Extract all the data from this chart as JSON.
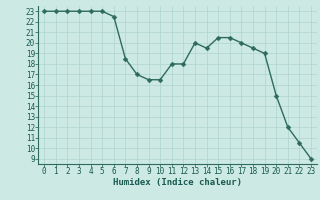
{
  "x": [
    0,
    1,
    2,
    3,
    4,
    5,
    6,
    7,
    8,
    9,
    10,
    11,
    12,
    13,
    14,
    15,
    16,
    17,
    18,
    19,
    20,
    21,
    22,
    23
  ],
  "y": [
    23,
    23,
    23,
    23,
    23,
    23,
    22.5,
    18.5,
    17,
    16.5,
    16.5,
    18,
    18,
    20,
    19.5,
    20.5,
    20.5,
    20,
    19.5,
    19,
    15,
    12,
    10.5,
    9
  ],
  "line_color": "#2e6b5e",
  "marker_color": "#2e6b5e",
  "bg_color": "#cce9e4",
  "grid_color": "#aed4ce",
  "xlabel": "Humidex (Indice chaleur)",
  "xlim": [
    -0.5,
    23.5
  ],
  "ylim": [
    8.5,
    23.5
  ],
  "xticks": [
    0,
    1,
    2,
    3,
    4,
    5,
    6,
    7,
    8,
    9,
    10,
    11,
    12,
    13,
    14,
    15,
    16,
    17,
    18,
    19,
    20,
    21,
    22,
    23
  ],
  "yticks": [
    9,
    10,
    11,
    12,
    13,
    14,
    15,
    16,
    17,
    18,
    19,
    20,
    21,
    22,
    23
  ],
  "xlabel_fontsize": 6.5,
  "tick_fontsize": 5.5,
  "linewidth": 1.0,
  "markersize": 2.5
}
